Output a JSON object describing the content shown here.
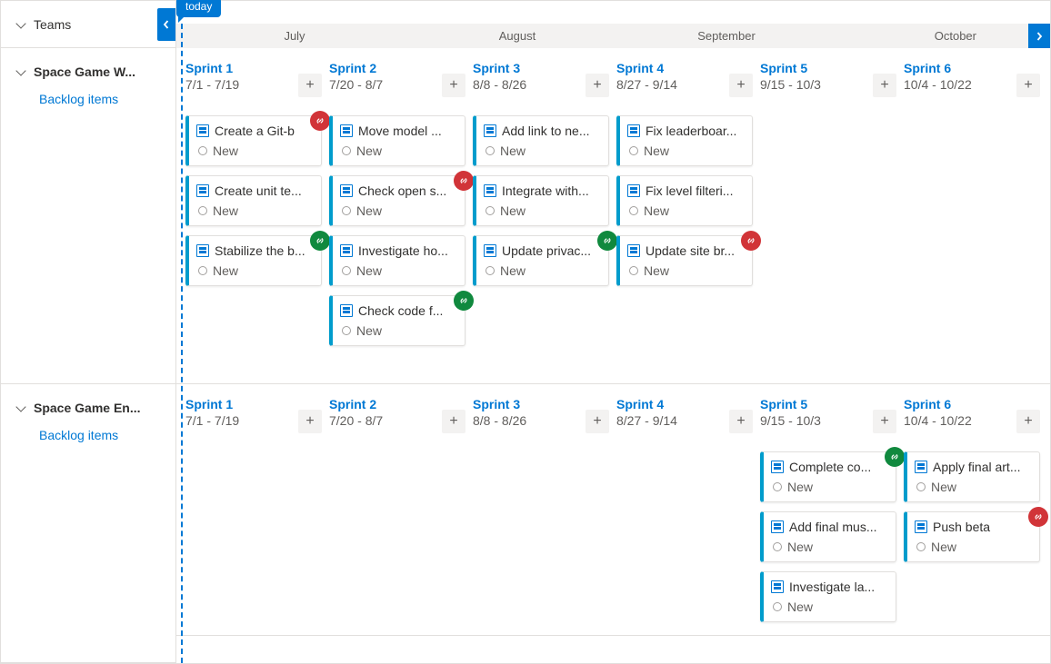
{
  "sidebar": {
    "header": "Teams",
    "teams": [
      {
        "name": "Space Game W...",
        "backlog_label": "Backlog items"
      },
      {
        "name": "Space Game En...",
        "backlog_label": "Backlog items"
      }
    ]
  },
  "timeline": {
    "today_label": "today",
    "months": [
      "July",
      "August",
      "September",
      "October"
    ]
  },
  "colors": {
    "link": "#0078d4",
    "card_accent": "#009ccc",
    "badge_red": "#d13438",
    "badge_green": "#10893e",
    "muted": "#605e5c",
    "header_bg": "#f3f2f1",
    "border": "#e1dfdd"
  },
  "state_label": "New",
  "plus_glyph": "+",
  "lanes": [
    {
      "team_index": 0,
      "sprints": [
        {
          "title": "Sprint 1",
          "dates": "7/1 - 7/19",
          "cards": [
            {
              "title": "Create a Git-b",
              "badge": "red"
            },
            {
              "title": "Create unit te..."
            },
            {
              "title": "Stabilize the b...",
              "badge": "green"
            }
          ]
        },
        {
          "title": "Sprint 2",
          "dates": "7/20 - 8/7",
          "cards": [
            {
              "title": "Move model ..."
            },
            {
              "title": "Check open s...",
              "badge": "red"
            },
            {
              "title": "Investigate ho..."
            },
            {
              "title": "Check code f...",
              "badge": "green"
            }
          ]
        },
        {
          "title": "Sprint 3",
          "dates": "8/8 - 8/26",
          "cards": [
            {
              "title": "Add link to ne..."
            },
            {
              "title": "Integrate with..."
            },
            {
              "title": "Update privac...",
              "badge": "green"
            }
          ]
        },
        {
          "title": "Sprint 4",
          "dates": "8/27 - 9/14",
          "cards": [
            {
              "title": "Fix leaderboar..."
            },
            {
              "title": "Fix level filteri..."
            },
            {
              "title": "Update site br...",
              "badge": "red"
            }
          ]
        },
        {
          "title": "Sprint 5",
          "dates": "9/15 - 10/3",
          "cards": []
        },
        {
          "title": "Sprint 6",
          "dates": "10/4 - 10/22",
          "cards": []
        }
      ]
    },
    {
      "team_index": 1,
      "sprints": [
        {
          "title": "Sprint 1",
          "dates": "7/1 - 7/19",
          "cards": []
        },
        {
          "title": "Sprint 2",
          "dates": "7/20 - 8/7",
          "cards": []
        },
        {
          "title": "Sprint 3",
          "dates": "8/8 - 8/26",
          "cards": []
        },
        {
          "title": "Sprint 4",
          "dates": "8/27 - 9/14",
          "cards": []
        },
        {
          "title": "Sprint 5",
          "dates": "9/15 - 10/3",
          "cards": [
            {
              "title": "Complete co...",
              "badge": "green"
            },
            {
              "title": "Add final mus..."
            },
            {
              "title": "Investigate la..."
            }
          ]
        },
        {
          "title": "Sprint 6",
          "dates": "10/4 - 10/22",
          "cards": [
            {
              "title": "Apply final art..."
            },
            {
              "title": "Push beta",
              "badge": "red"
            }
          ]
        }
      ]
    }
  ]
}
